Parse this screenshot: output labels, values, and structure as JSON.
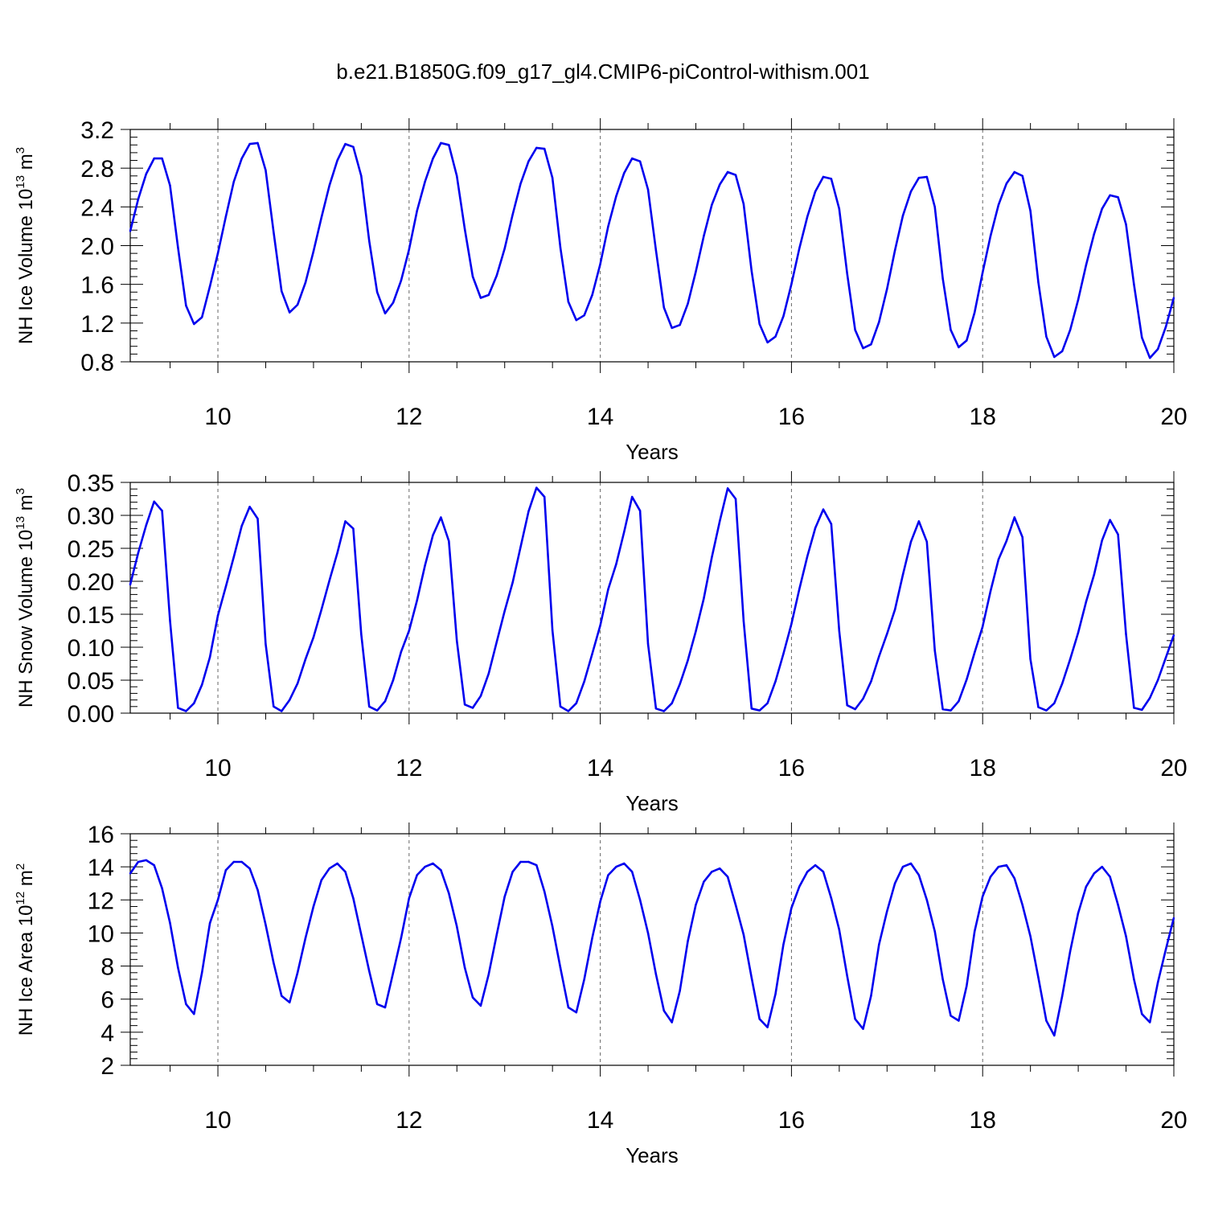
{
  "figure": {
    "title": "b.e21.B1850G.f09_g17_gl4.CMIP6-piControl-withism.001"
  },
  "chart_data": [
    {
      "type": "line",
      "xlabel": "Years",
      "ylabel": "NH Ice Volume 10",
      "ylabel_sup": "13",
      "ylabel_unit": "m",
      "ylabel_unit_sup": "3",
      "xlim": [
        9.083,
        20.0
      ],
      "ylim": [
        0.8,
        3.2
      ],
      "yticks": [
        0.8,
        1.2,
        1.6,
        2.0,
        2.4,
        2.8,
        3.2
      ],
      "ytick_labels": [
        "0.8",
        "1.2",
        "1.6",
        "2.0",
        "2.4",
        "2.8",
        "3.2"
      ],
      "xticks": [
        10,
        12,
        14,
        16,
        18,
        20
      ],
      "xtick_labels": [
        "10",
        "12",
        "14",
        "16",
        "18",
        "20"
      ],
      "grid": "vertical-dashed",
      "line_color": "#0000ee",
      "x_start": 9.083,
      "x_step": 0.08333,
      "values": [
        2.15,
        2.48,
        2.74,
        2.9,
        2.9,
        2.62,
        1.98,
        1.38,
        1.19,
        1.26,
        1.58,
        1.92,
        2.3,
        2.66,
        2.9,
        3.05,
        3.06,
        2.78,
        2.14,
        1.53,
        1.31,
        1.39,
        1.62,
        1.94,
        2.29,
        2.62,
        2.88,
        3.05,
        3.02,
        2.72,
        2.05,
        1.52,
        1.3,
        1.41,
        1.64,
        1.96,
        2.36,
        2.66,
        2.9,
        3.06,
        3.04,
        2.72,
        2.17,
        1.68,
        1.46,
        1.49,
        1.69,
        1.97,
        2.32,
        2.64,
        2.87,
        3.01,
        3.0,
        2.7,
        1.98,
        1.42,
        1.23,
        1.28,
        1.49,
        1.81,
        2.2,
        2.51,
        2.75,
        2.9,
        2.87,
        2.58,
        1.95,
        1.36,
        1.15,
        1.18,
        1.4,
        1.73,
        2.1,
        2.42,
        2.63,
        2.76,
        2.73,
        2.43,
        1.74,
        1.19,
        1.0,
        1.06,
        1.27,
        1.6,
        1.97,
        2.3,
        2.56,
        2.71,
        2.69,
        2.38,
        1.71,
        1.13,
        0.94,
        0.98,
        1.21,
        1.55,
        1.95,
        2.31,
        2.56,
        2.7,
        2.71,
        2.4,
        1.66,
        1.13,
        0.95,
        1.02,
        1.31,
        1.72,
        2.1,
        2.42,
        2.64,
        2.76,
        2.72,
        2.36,
        1.62,
        1.06,
        0.85,
        0.91,
        1.13,
        1.44,
        1.8,
        2.12,
        2.38,
        2.52,
        2.5,
        2.22,
        1.6,
        1.05,
        0.84,
        0.93,
        1.16,
        1.46
      ]
    },
    {
      "type": "line",
      "xlabel": "Years",
      "ylabel": "NH Snow Volume 10",
      "ylabel_sup": "13",
      "ylabel_unit": "m",
      "ylabel_unit_sup": "3",
      "xlim": [
        9.083,
        20.0
      ],
      "ylim": [
        0.0,
        0.35
      ],
      "yticks": [
        0.0,
        0.05,
        0.1,
        0.15,
        0.2,
        0.25,
        0.3,
        0.35
      ],
      "ytick_labels": [
        "0.00",
        "0.05",
        "0.10",
        "0.15",
        "0.20",
        "0.25",
        "0.30",
        "0.35"
      ],
      "xticks": [
        10,
        12,
        14,
        16,
        18,
        20
      ],
      "xtick_labels": [
        "10",
        "12",
        "14",
        "16",
        "18",
        "20"
      ],
      "grid": "vertical-dashed",
      "line_color": "#0000ee",
      "x_start": 9.083,
      "x_step": 0.08333,
      "values": [
        0.195,
        0.243,
        0.285,
        0.321,
        0.307,
        0.14,
        0.008,
        0.003,
        0.015,
        0.043,
        0.085,
        0.148,
        0.192,
        0.237,
        0.284,
        0.313,
        0.295,
        0.105,
        0.01,
        0.003,
        0.02,
        0.045,
        0.082,
        0.115,
        0.157,
        0.201,
        0.243,
        0.291,
        0.28,
        0.12,
        0.01,
        0.004,
        0.018,
        0.05,
        0.093,
        0.125,
        0.171,
        0.224,
        0.27,
        0.297,
        0.261,
        0.11,
        0.013,
        0.008,
        0.026,
        0.06,
        0.108,
        0.155,
        0.198,
        0.252,
        0.306,
        0.342,
        0.328,
        0.126,
        0.01,
        0.003,
        0.015,
        0.048,
        0.09,
        0.133,
        0.188,
        0.226,
        0.275,
        0.328,
        0.307,
        0.105,
        0.007,
        0.003,
        0.015,
        0.044,
        0.08,
        0.124,
        0.174,
        0.236,
        0.291,
        0.341,
        0.325,
        0.14,
        0.007,
        0.004,
        0.015,
        0.048,
        0.09,
        0.135,
        0.188,
        0.238,
        0.281,
        0.309,
        0.287,
        0.125,
        0.012,
        0.006,
        0.022,
        0.048,
        0.086,
        0.12,
        0.157,
        0.21,
        0.26,
        0.291,
        0.26,
        0.095,
        0.006,
        0.004,
        0.018,
        0.051,
        0.092,
        0.131,
        0.185,
        0.233,
        0.261,
        0.297,
        0.267,
        0.082,
        0.009,
        0.004,
        0.015,
        0.045,
        0.082,
        0.122,
        0.169,
        0.21,
        0.262,
        0.293,
        0.271,
        0.12,
        0.008,
        0.005,
        0.023,
        0.05,
        0.084,
        0.118
      ]
    },
    {
      "type": "line",
      "xlabel": "Years",
      "ylabel": "NH Ice Area 10",
      "ylabel_sup": "12",
      "ylabel_unit": "m",
      "ylabel_unit_sup": "2",
      "xlim": [
        9.083,
        20.0
      ],
      "ylim": [
        2,
        16
      ],
      "yticks": [
        2,
        4,
        6,
        8,
        10,
        12,
        14,
        16
      ],
      "ytick_labels": [
        "2",
        "4",
        "6",
        "8",
        "10",
        "12",
        "14",
        "16"
      ],
      "xticks": [
        10,
        12,
        14,
        16,
        18,
        20
      ],
      "xtick_labels": [
        "10",
        "12",
        "14",
        "16",
        "18",
        "20"
      ],
      "grid": "vertical-dashed",
      "line_color": "#0000ee",
      "x_start": 9.083,
      "x_step": 0.08333,
      "values": [
        13.6,
        14.3,
        14.4,
        14.1,
        12.7,
        10.6,
        7.9,
        5.7,
        5.1,
        7.6,
        10.6,
        12.0,
        13.8,
        14.3,
        14.3,
        13.9,
        12.6,
        10.5,
        8.2,
        6.2,
        5.8,
        7.6,
        9.7,
        11.6,
        13.2,
        13.9,
        14.2,
        13.7,
        12.1,
        9.9,
        7.7,
        5.7,
        5.5,
        7.6,
        9.7,
        12.1,
        13.5,
        14.0,
        14.2,
        13.8,
        12.4,
        10.4,
        7.9,
        6.1,
        5.6,
        7.5,
        9.9,
        12.2,
        13.7,
        14.3,
        14.3,
        14.1,
        12.5,
        10.4,
        7.9,
        5.5,
        5.2,
        7.2,
        9.7,
        11.9,
        13.5,
        14.0,
        14.2,
        13.7,
        12.0,
        10.0,
        7.5,
        5.3,
        4.6,
        6.5,
        9.5,
        11.7,
        13.1,
        13.7,
        13.9,
        13.4,
        11.7,
        9.9,
        7.3,
        4.8,
        4.3,
        6.3,
        9.3,
        11.5,
        12.8,
        13.7,
        14.1,
        13.7,
        12.1,
        10.2,
        7.4,
        4.8,
        4.2,
        6.2,
        9.3,
        11.3,
        13.0,
        14.0,
        14.2,
        13.5,
        12.0,
        10.1,
        7.2,
        5.0,
        4.7,
        6.8,
        10.1,
        12.2,
        13.4,
        14.0,
        14.1,
        13.3,
        11.7,
        9.8,
        7.3,
        4.7,
        3.8,
        6.2,
        8.9,
        11.2,
        12.8,
        13.6,
        14.0,
        13.4,
        11.7,
        9.8,
        7.2,
        5.1,
        4.6,
        7.0,
        9.0,
        10.9
      ]
    }
  ]
}
